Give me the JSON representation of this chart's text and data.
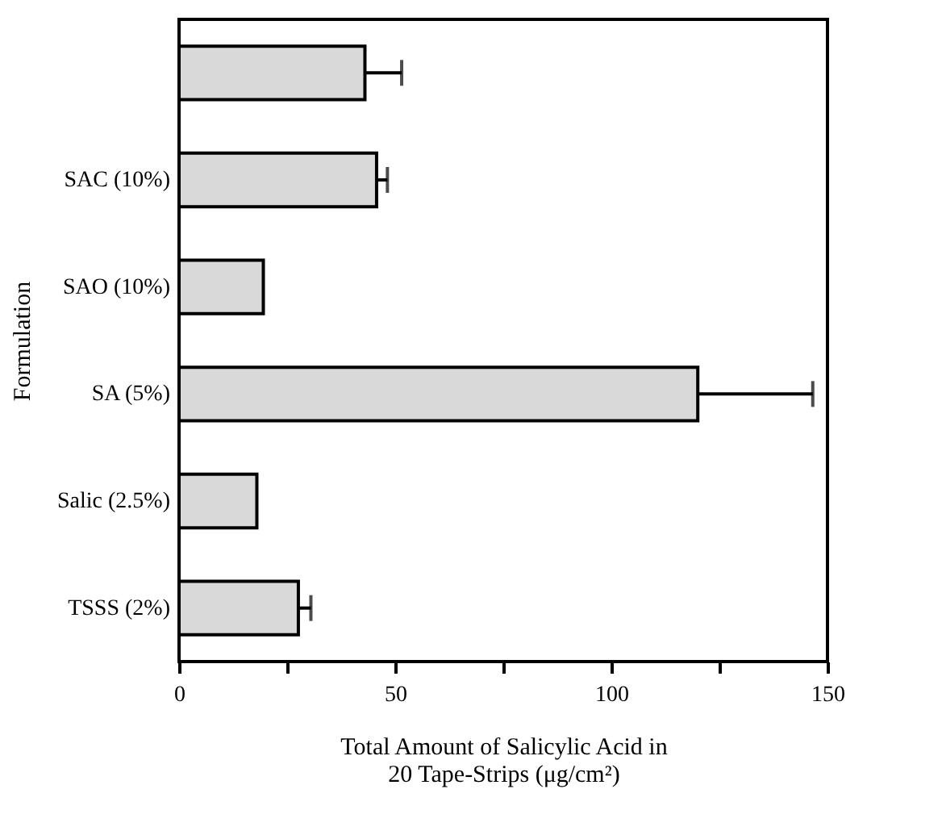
{
  "chart_data": {
    "type": "bar",
    "orientation": "horizontal",
    "ylabel": "Formulation",
    "xlabel": "Total Amount of Salicylic Acid in\n20 Tape-Strips (μg/cm²)",
    "categories": [
      null,
      "SAC (10%)",
      "SAO (10%)",
      "SA (5%)",
      "Salic (2.5%)",
      "TSSS (2%)"
    ],
    "values": [
      43,
      45.7,
      19.5,
      120,
      18,
      27.6
    ],
    "errors": [
      [
        43,
        51.5
      ],
      [
        45.7,
        48.2
      ],
      null,
      [
        120,
        146.6
      ],
      null,
      [
        27.6,
        30.5
      ]
    ],
    "color": "#d9d9d9",
    "xlim": [
      0,
      150
    ],
    "xticks": [
      0,
      {
        "value": 25,
        "label": null
      },
      50,
      {
        "value": 75,
        "label": null
      },
      100,
      {
        "value": 125,
        "label": null
      },
      150
    ],
    "grid": false
  }
}
